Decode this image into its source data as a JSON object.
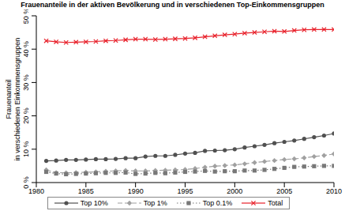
{
  "chart_data": {
    "type": "line",
    "title": "Frauenanteile in der aktiven Bevölkerung und in verschiedenen Top-Einkommensgruppen",
    "y_label": "Frauenanteil\nin verschiedenen Einkommensgruppen",
    "x": [
      1981,
      1982,
      1983,
      1984,
      1985,
      1986,
      1987,
      1988,
      1989,
      1990,
      1991,
      1992,
      1993,
      1994,
      1995,
      1996,
      1997,
      1998,
      1999,
      2000,
      2001,
      2002,
      2003,
      2004,
      2005,
      2006,
      2007,
      2008,
      2009,
      2010
    ],
    "series": [
      {
        "name": "Top 10%",
        "color": "#505050",
        "marker": "circle",
        "line_style": "solid",
        "values": [
          6.5,
          6.6,
          6.8,
          6.8,
          6.9,
          7.0,
          7.0,
          7.1,
          7.3,
          7.3,
          7.8,
          8.0,
          8.0,
          8.3,
          8.7,
          8.9,
          9.5,
          9.6,
          9.7,
          10.0,
          10.5,
          10.9,
          11.3,
          11.8,
          12.2,
          12.6,
          13.1,
          13.6,
          14.1,
          14.7
        ]
      },
      {
        "name": "Top 1%",
        "color": "#a0a0a0",
        "marker": "diamond",
        "line_style": "dashed",
        "values": [
          3.8,
          3.0,
          2.9,
          3.0,
          3.1,
          3.2,
          3.4,
          3.5,
          3.6,
          3.5,
          3.5,
          3.6,
          3.7,
          3.8,
          3.9,
          4.2,
          4.6,
          4.9,
          5.1,
          5.3,
          5.6,
          6.0,
          6.3,
          6.6,
          6.9,
          7.1,
          7.4,
          7.8,
          8.1,
          8.6
        ]
      },
      {
        "name": "Top 0.1%",
        "color": "#787878",
        "marker": "square",
        "line_style": "dotted",
        "values": [
          3.2,
          2.7,
          2.5,
          2.6,
          2.7,
          2.8,
          2.9,
          2.9,
          3.0,
          2.6,
          2.7,
          2.9,
          2.8,
          3.0,
          3.2,
          3.3,
          3.5,
          3.3,
          3.4,
          3.4,
          3.6,
          3.6,
          3.8,
          4.1,
          4.4,
          4.7,
          4.8,
          4.9,
          5.0,
          5.0
        ]
      },
      {
        "name": "Total",
        "color": "#e8202a",
        "marker": "x",
        "line_style": "solid",
        "values": [
          42.5,
          42.2,
          42.0,
          42.1,
          42.2,
          42.3,
          42.5,
          42.6,
          42.8,
          43.0,
          43.0,
          42.9,
          43.0,
          43.1,
          43.2,
          43.4,
          43.7,
          44.0,
          44.3,
          44.5,
          44.8,
          45.0,
          45.2,
          45.4,
          45.3,
          45.6,
          45.8,
          45.9,
          45.9,
          45.9
        ]
      }
    ],
    "xlim": [
      1980,
      2010
    ],
    "xticks": [
      1980,
      1985,
      1990,
      1995,
      2000,
      2005,
      2010
    ],
    "ylim": [
      0,
      50
    ],
    "yticks": [
      {
        "value": 0,
        "label": "0 %"
      },
      {
        "value": 10,
        "label": "10 %"
      },
      {
        "value": 20,
        "label": "20 %"
      },
      {
        "value": 30,
        "label": "30 %"
      },
      {
        "value": 40,
        "label": "40 %"
      },
      {
        "value": 50,
        "label": "50 %"
      }
    ],
    "legend": "bottom",
    "grid": false
  }
}
